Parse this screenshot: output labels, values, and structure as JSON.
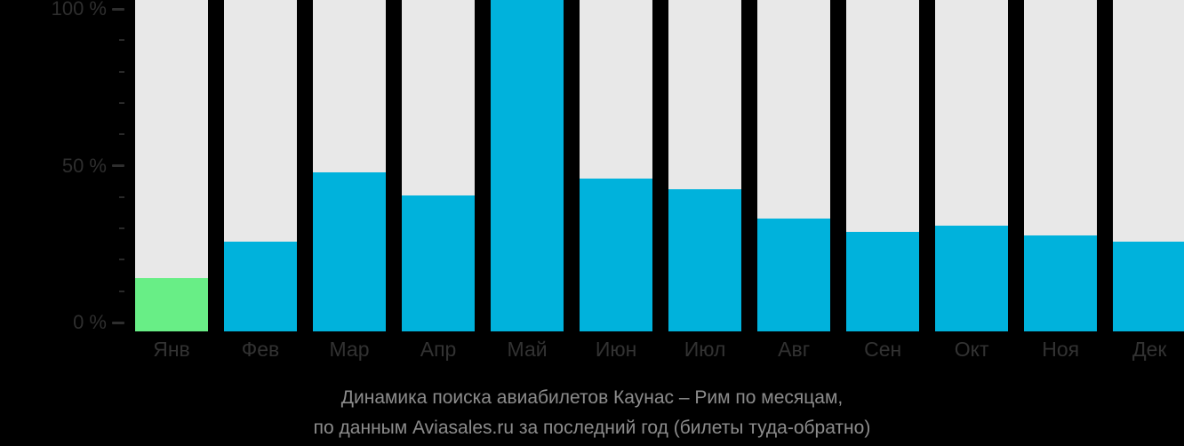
{
  "colors": {
    "background": "#000000",
    "track": "#e8e8e8",
    "bar": "#00b2dc",
    "bar_highlight": "#68ee86",
    "axis_text": "#2e2e2e",
    "month_text": "#323232",
    "title_text": "#8c8c8c"
  },
  "title": {
    "line1": "Динамика поиска авиабилетов Каунас – Рим по месяцам,",
    "line2": "по данным Aviasales.ru за последний год (билеты туда-обратно)"
  },
  "chart_data": {
    "type": "bar",
    "title": "Динамика поиска авиабилетов Каунас – Рим по месяцам, по данным Aviasales.ru за последний год (билеты туда-обратно)",
    "categories": [
      "Янв",
      "Фев",
      "Мар",
      "Апр",
      "Май",
      "Июн",
      "Июл",
      "Авг",
      "Сен",
      "Окт",
      "Ноя",
      "Дек"
    ],
    "values": [
      16,
      27,
      48,
      41,
      100,
      46,
      43,
      34,
      30,
      32,
      29,
      27
    ],
    "unit": "%",
    "bar_color": "#00b2dc",
    "highlight_index": 0,
    "highlight_color": "#68ee86",
    "background_bars": true,
    "grid": "off",
    "legend": "none",
    "ylim": [
      0,
      100
    ],
    "yticks_major": [
      {
        "value": 100,
        "label": "100 %"
      },
      {
        "value": 50,
        "label": "50 %"
      },
      {
        "value": 0,
        "label": "0 %"
      }
    ],
    "yticks_minor": [
      90,
      80,
      70,
      60,
      40,
      30,
      20,
      10
    ]
  }
}
